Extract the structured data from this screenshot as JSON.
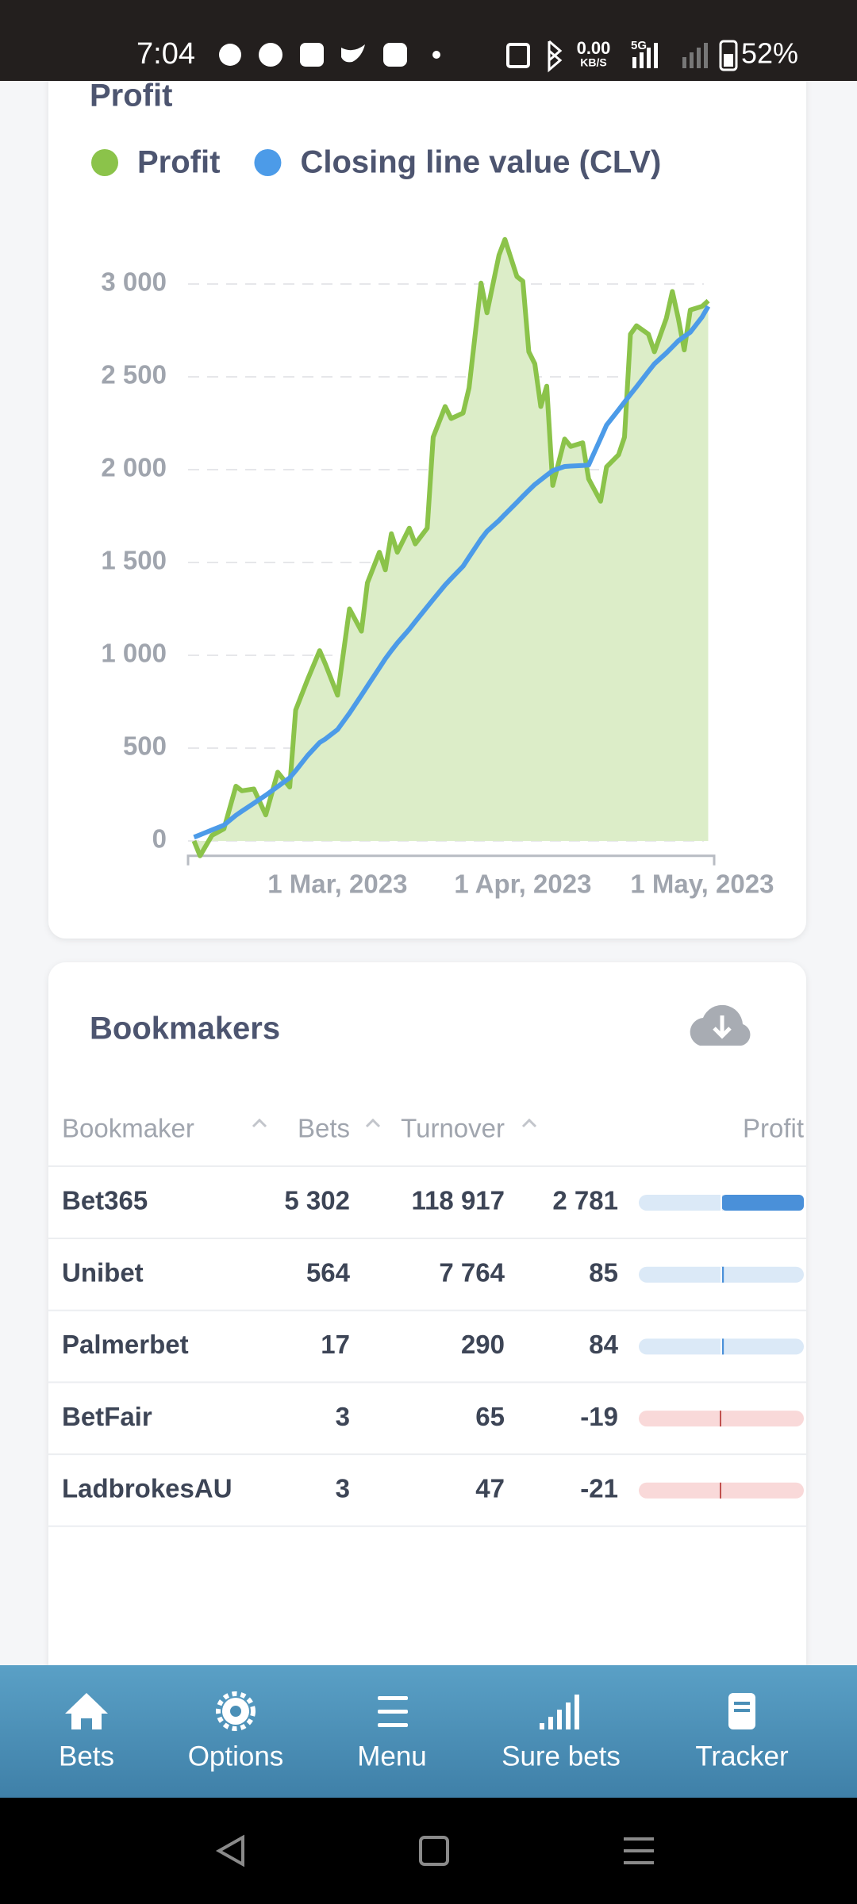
{
  "status_bar": {
    "time": "7:04",
    "net_speed": "0.00",
    "net_unit": "KB/S",
    "network": "5G",
    "battery": "52%"
  },
  "chart_data": {
    "type": "line",
    "title": "Profit",
    "legend": "top",
    "grid": true,
    "x": [
      "2023-02-05",
      "2023-02-06",
      "2023-02-08",
      "2023-02-10",
      "2023-02-12",
      "2023-02-13",
      "2023-02-15",
      "2023-02-17",
      "2023-02-19",
      "2023-02-21",
      "2023-02-22",
      "2023-02-24",
      "2023-02-26",
      "2023-02-27",
      "2023-03-01",
      "2023-03-03",
      "2023-03-05",
      "2023-03-06",
      "2023-03-08",
      "2023-03-09",
      "2023-03-10",
      "2023-03-11",
      "2023-03-13",
      "2023-03-14",
      "2023-03-16",
      "2023-03-17",
      "2023-03-19",
      "2023-03-20",
      "2023-03-22",
      "2023-03-23",
      "2023-03-25",
      "2023-03-26",
      "2023-03-28",
      "2023-03-29",
      "2023-03-31",
      "2023-04-01",
      "2023-04-02",
      "2023-04-03",
      "2023-04-04",
      "2023-04-05",
      "2023-04-06",
      "2023-04-08",
      "2023-04-09",
      "2023-04-11",
      "2023-04-12",
      "2023-04-14",
      "2023-04-15",
      "2023-04-17",
      "2023-04-18",
      "2023-04-19",
      "2023-04-20",
      "2023-04-22",
      "2023-04-23",
      "2023-04-25",
      "2023-04-26",
      "2023-04-27",
      "2023-04-28",
      "2023-04-29",
      "2023-05-01",
      "2023-05-02"
    ],
    "series": [
      {
        "name": "Profit",
        "color": "#8bc34a",
        "fill": "#dcedc8",
        "values": [
          0,
          -80,
          30,
          65,
          295,
          270,
          280,
          140,
          370,
          290,
          705,
          870,
          1025,
          950,
          785,
          1250,
          1130,
          1390,
          1555,
          1460,
          1655,
          1555,
          1685,
          1600,
          1685,
          2175,
          2340,
          2275,
          2305,
          2440,
          3005,
          2845,
          3155,
          3240,
          3040,
          3015,
          2635,
          2570,
          2340,
          2450,
          1915,
          2165,
          2125,
          2145,
          1950,
          1830,
          2015,
          2080,
          2175,
          2730,
          2775,
          2730,
          2635,
          2815,
          2960,
          2815,
          2645,
          2860,
          2880,
          2910
        ]
      },
      {
        "name": "Closing line value (CLV)",
        "color": "#4c9be8",
        "values": [
          20,
          33,
          59,
          85,
          138,
          160,
          203,
          246,
          293,
          340,
          378,
          460,
          530,
          550,
          600,
          688,
          785,
          834,
          932,
          981,
          1025,
          1066,
          1140,
          1181,
          1261,
          1301,
          1379,
          1413,
          1480,
          1529,
          1626,
          1668,
          1726,
          1759,
          1824,
          1857,
          1889,
          1920,
          1945,
          1970,
          1995,
          2017,
          2019,
          2022,
          2025,
          2168,
          2240,
          2322,
          2364,
          2405,
          2446,
          2529,
          2570,
          2628,
          2661,
          2694,
          2717,
          2740,
          2823,
          2880
        ]
      }
    ],
    "xlim": [
      "2023-02-04",
      "2023-05-03"
    ],
    "xticks": [
      {
        "value": "2023-03-01",
        "label": "1 Mar, 2023"
      },
      {
        "value": "2023-04-01",
        "label": "1 Apr, 2023"
      },
      {
        "value": "2023-05-01",
        "label": "1 May, 2023"
      }
    ],
    "ylim": [
      -80,
      3400
    ],
    "yticks": [
      0,
      500,
      {
        "value": 1000,
        "label": "1 000"
      },
      {
        "value": 1500,
        "label": "1 500"
      },
      {
        "value": 2000,
        "label": "2 000"
      },
      {
        "value": 2500,
        "label": "2 500"
      },
      {
        "value": 3000,
        "label": "3 000"
      }
    ]
  },
  "bookmakers": {
    "title": "Bookmakers",
    "columns": [
      "Bookmaker",
      "Bets",
      "Turnover",
      "Profit"
    ],
    "rows": [
      {
        "name": "Bet365",
        "bets": "5 302",
        "turnover": "118 917",
        "profit": "2 781"
      },
      {
        "name": "Unibet",
        "bets": "564",
        "turnover": "7 764",
        "profit": "85"
      },
      {
        "name": "Palmerbet",
        "bets": "17",
        "turnover": "290",
        "profit": "84"
      },
      {
        "name": "BetFair",
        "bets": "3",
        "turnover": "65",
        "profit": "-19"
      },
      {
        "name": "LadbrokesAU",
        "bets": "3",
        "turnover": "47",
        "profit": "-21"
      }
    ]
  },
  "nav": [
    "Bets",
    "Options",
    "Menu",
    "Sure bets",
    "Tracker"
  ]
}
